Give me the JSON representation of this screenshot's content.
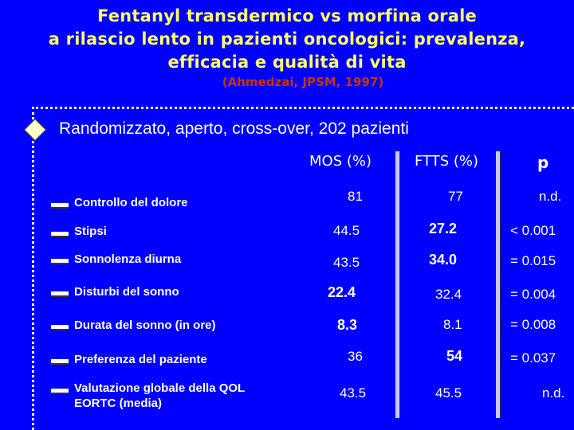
{
  "title": {
    "line1": "Fentanyl transdermico vs morfina orale",
    "line2": "a rilascio lento in pazienti oncologici: prevalenza,",
    "line3": "efficacia e qualità di vita"
  },
  "citation": "(Ahmedzai, JPSM, 1997)",
  "design_text": "Randomizzato, aperto, cross-over, 202 pazienti",
  "columns": {
    "mos": "MOS (%)",
    "ftts": "FTTS (%)",
    "p": "p"
  },
  "rows": [
    {
      "label": "Controllo del dolore",
      "mos": "81",
      "ftts": "77",
      "p": "n.d."
    },
    {
      "label": "Stipsi",
      "mos": "44.5",
      "ftts": "27.2",
      "p": "< 0.001"
    },
    {
      "label": "Sonnolenza diurna",
      "mos": "43.5",
      "ftts": "34.0",
      "p": "= 0.015"
    },
    {
      "label": "Disturbi del sonno",
      "mos": "22.4",
      "ftts": "32.4",
      "p": "= 0.004"
    },
    {
      "label": "Durata del sonno (in ore)",
      "mos": "8.3",
      "ftts": "8.1",
      "p": "= 0.008"
    },
    {
      "label": "Preferenza del paziente",
      "mos": "36",
      "ftts": "54",
      "p": "= 0.037"
    },
    {
      "label": "Valutazione globale della QOL EORTC (media)",
      "mos": "43.5",
      "ftts": "45.5",
      "p": "n.d."
    }
  ],
  "colors": {
    "background": "#0000ff",
    "title": "#ffff66",
    "citation": "#cc3300",
    "text": "#ffffff"
  }
}
